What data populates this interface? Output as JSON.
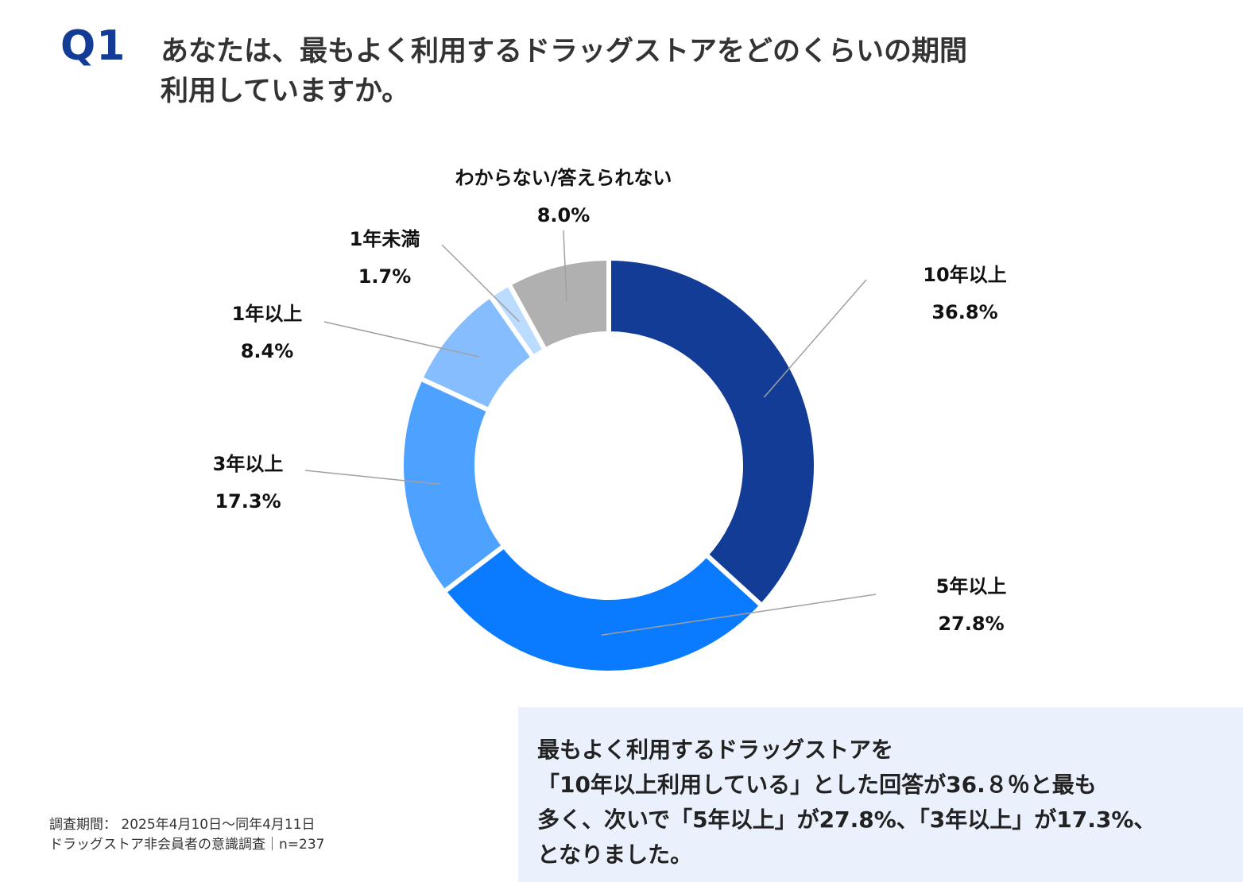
{
  "question": {
    "label": "Q1",
    "line1": "あなたは、最もよく利用するドラッグストアをどのくらいの期間",
    "line2": "利用していますか。"
  },
  "chart_data": {
    "type": "pie",
    "donut": true,
    "unit": "%",
    "slices": [
      {
        "label": "10年以上",
        "value": 36.8,
        "value_label": "36.8%",
        "color": "#133c96"
      },
      {
        "label": "5年以上",
        "value": 27.8,
        "value_label": "27.8%",
        "color": "#0a7bff"
      },
      {
        "label": "3年以上",
        "value": 17.3,
        "value_label": "17.3%",
        "color": "#4da2ff"
      },
      {
        "label": "1年以上",
        "value": 8.4,
        "value_label": "8.4%",
        "color": "#85bdff"
      },
      {
        "label": "1年未満",
        "value": 1.7,
        "value_label": "1.7%",
        "color": "#bcdcff"
      },
      {
        "label": "わからない/答えられない",
        "value": 8.0,
        "value_label": "8.0%",
        "color": "#b0b0b0"
      }
    ]
  },
  "summary": {
    "line1": "最もよく利用するドラッグストアを",
    "line2": "「10年以上利用している」とした回答が36.８％と最も",
    "line3": "多く、次いで「5年以上」が27.8%、「3年以上」が17.3%、",
    "line4": "となりました。"
  },
  "footnote": {
    "line1": "調査期間： 2025年4月10日～同年4月11日",
    "line2": "ドラッグストア非会員者の意識調査｜n=237"
  }
}
